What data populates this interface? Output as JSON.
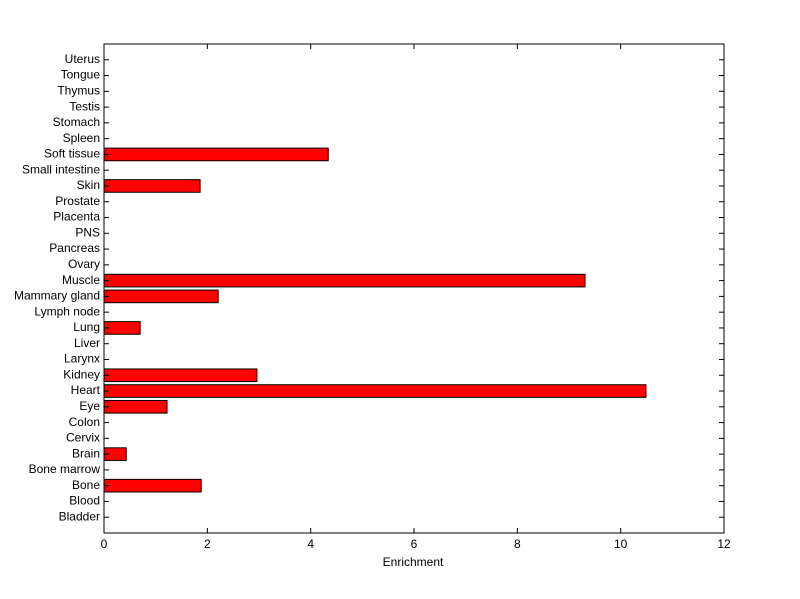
{
  "chart_data": {
    "type": "barh",
    "xlabel": "Enrichment",
    "categories": [
      "Bladder",
      "Blood",
      "Bone",
      "Bone marrow",
      "Brain",
      "Cervix",
      "Colon",
      "Eye",
      "Heart",
      "Kidney",
      "Larynx",
      "Liver",
      "Lung",
      "Lymph node",
      "Mammary gland",
      "Muscle",
      "Ovary",
      "Pancreas",
      "PNS",
      "Placenta",
      "Prostate",
      "Skin",
      "Small intestine",
      "Soft tissue",
      "Spleen",
      "Stomach",
      "Testis",
      "Thymus",
      "Tongue",
      "Uterus"
    ],
    "values": [
      0,
      0,
      1.88,
      0,
      0.43,
      0,
      0,
      1.22,
      10.49,
      2.96,
      0,
      0,
      0.7,
      0,
      2.21,
      9.31,
      0,
      0,
      0,
      0,
      0,
      1.86,
      0,
      4.34,
      0,
      0,
      0,
      0,
      0,
      0
    ],
    "color": "#ff0000",
    "xlim": [
      0,
      12
    ],
    "xticks": [
      0,
      2,
      4,
      6,
      8,
      10,
      12
    ]
  }
}
